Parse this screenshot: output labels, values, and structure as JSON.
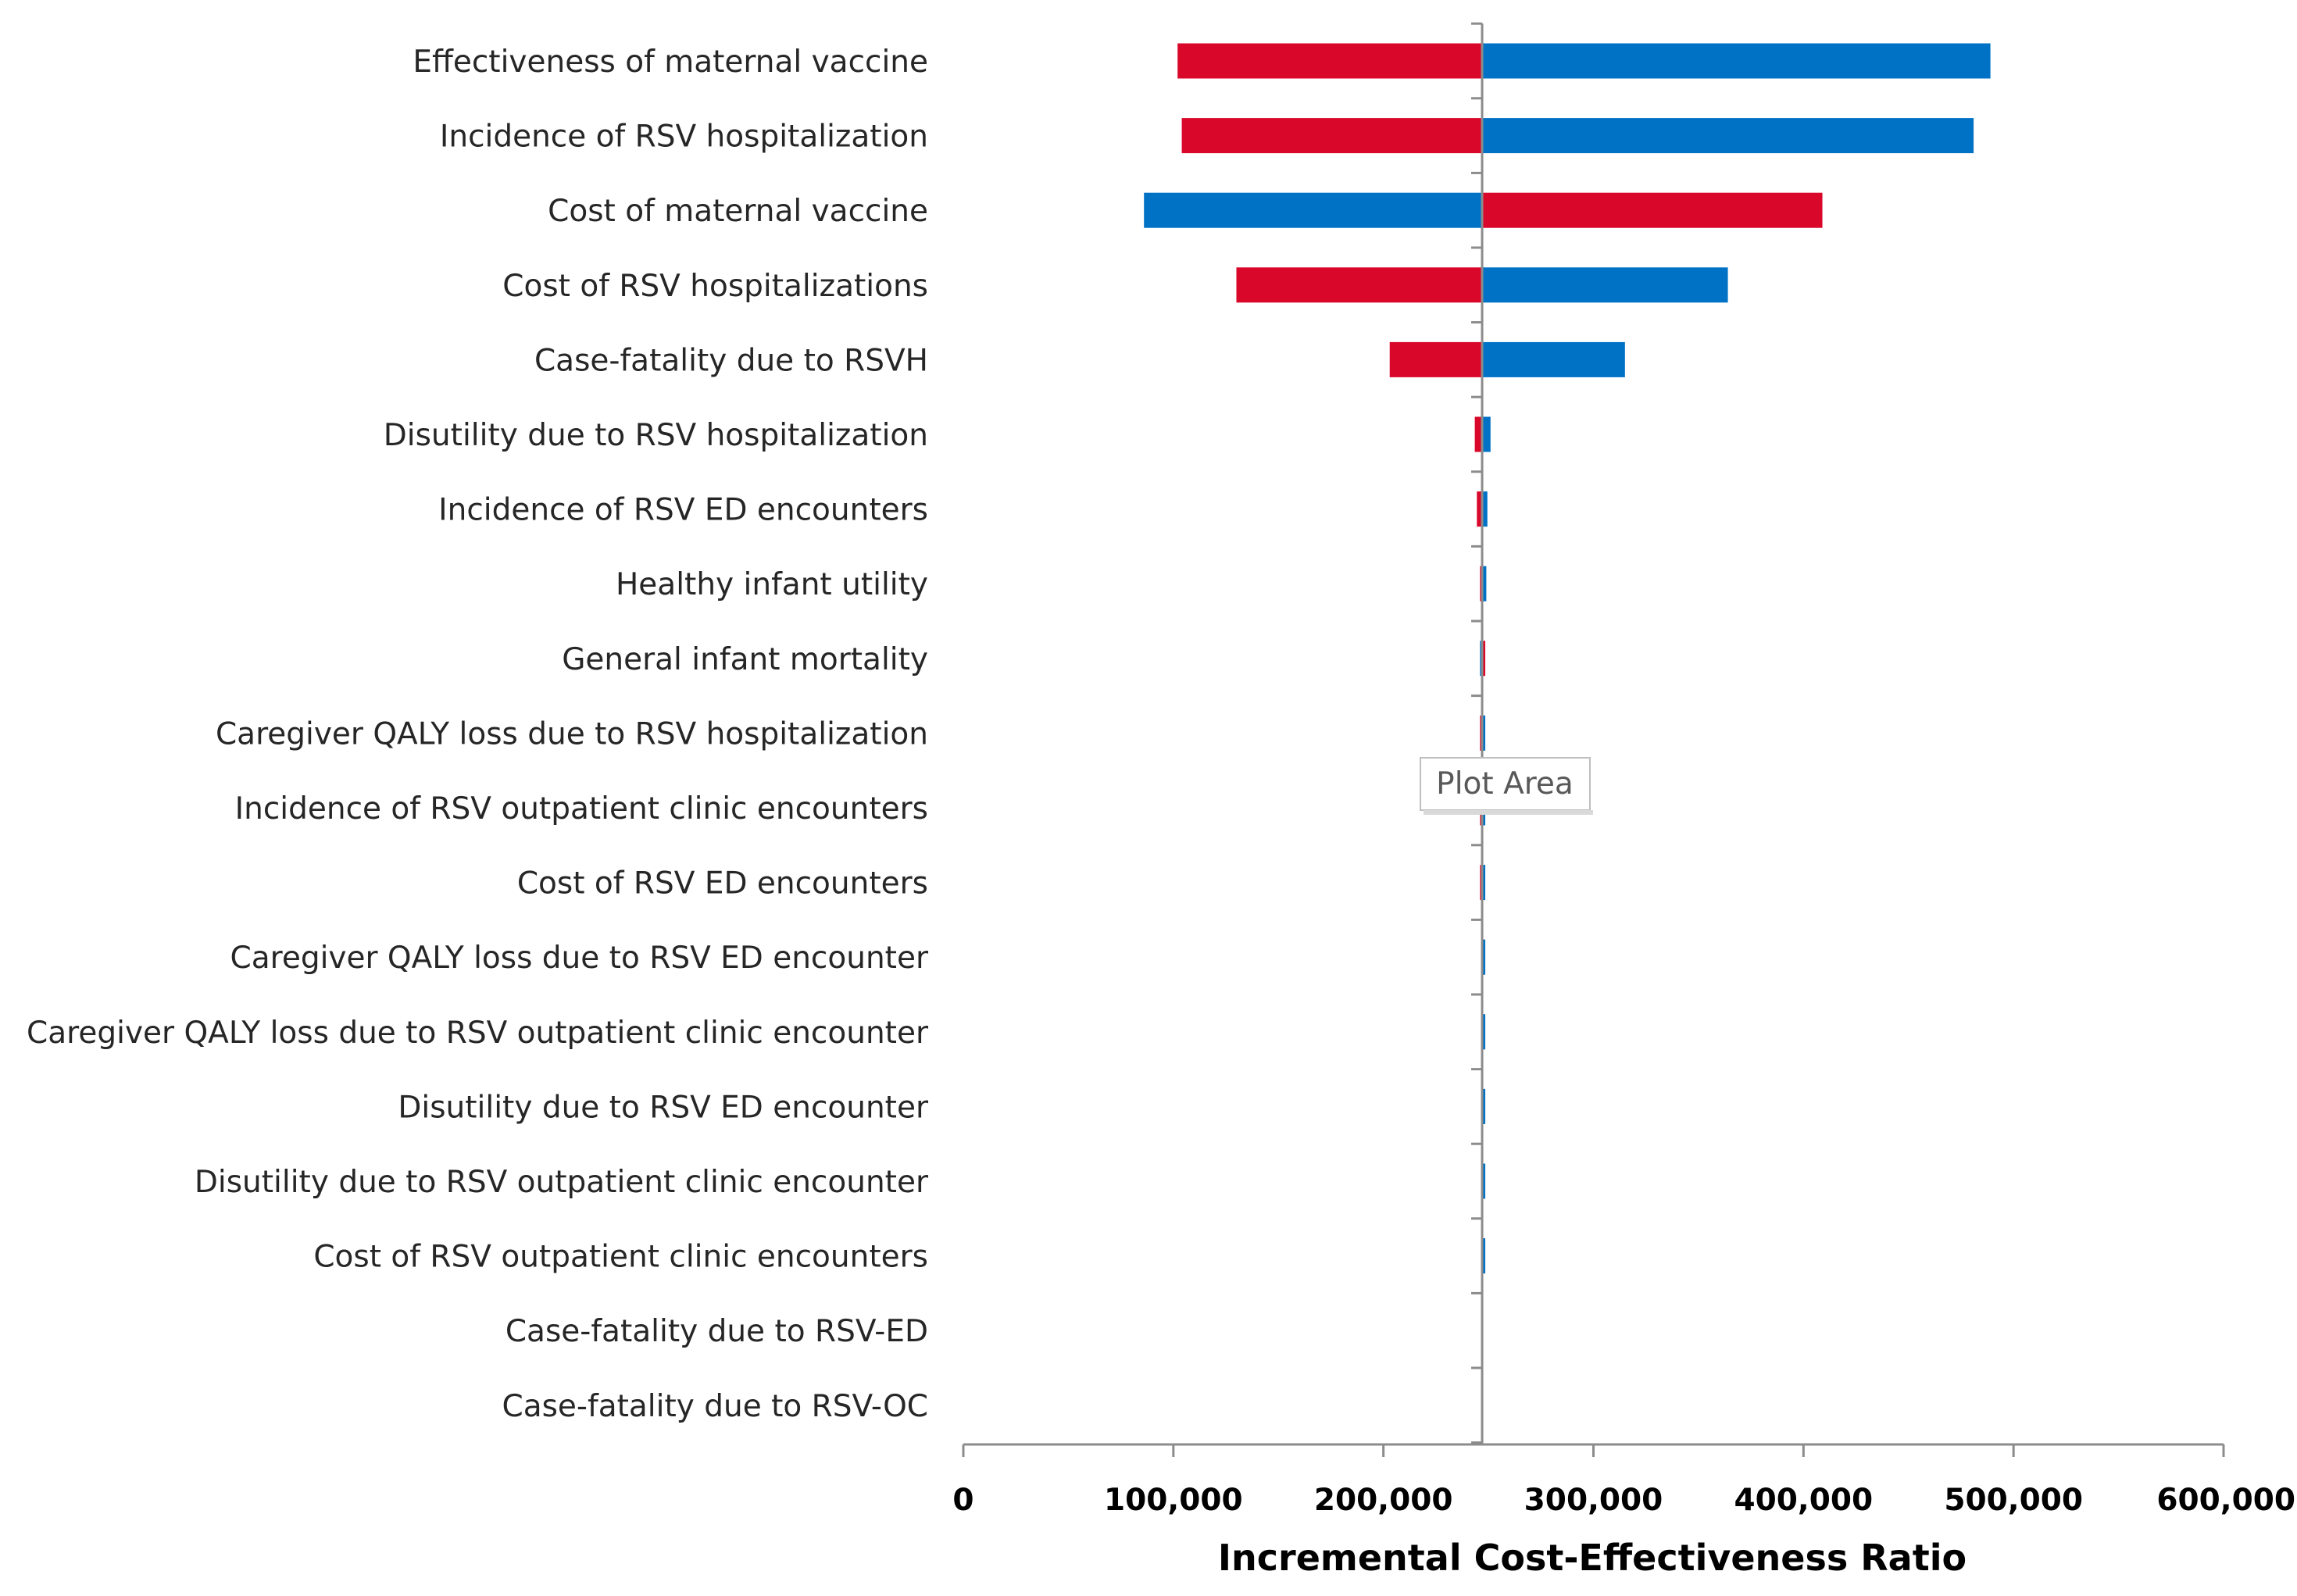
{
  "chart_data": {
    "type": "tornado",
    "xlabel": "Incremental Cost-Effectiveness Ratio",
    "xlim": [
      0,
      600000
    ],
    "xticks": [
      0,
      100000,
      200000,
      300000,
      400000,
      500000,
      600000
    ],
    "xtick_labels": [
      "0",
      "100,000",
      "200,000",
      "300,000",
      "400,000",
      "500,000",
      "600,000"
    ],
    "base_value": 247000,
    "colors": {
      "red": "#d9082a",
      "blue": "#0072c6",
      "axis": "#8c8c8c"
    },
    "categories": [
      "Effectiveness of maternal vaccine",
      "Incidence of RSV hospitalization",
      "Cost of maternal vaccine",
      "Cost of RSV hospitalizations",
      "Case-fatality due to RSVH",
      "Disutility due to RSV hospitalization",
      "Incidence of RSV ED encounters",
      "Healthy infant utility",
      "General infant mortality",
      "Caregiver QALY loss due to RSV hospitalization",
      "Incidence of RSV outpatient clinic encounters",
      "Cost of RSV ED encounters",
      "Caregiver QALY loss due to RSV ED encounter",
      "Caregiver QALY loss due to RSV outpatient clinic encounter",
      "Disutility due to RSV ED encounter",
      "Disutility due to RSV outpatient clinic encounter",
      "Cost of RSV outpatient clinic encounters",
      "Case-fatality due to RSV-ED",
      "Case-fatality due to RSV-OC"
    ],
    "series": [
      {
        "name": "red",
        "values": [
          102000,
          104000,
          409000,
          130000,
          203000,
          243500,
          244500,
          246000,
          248500,
          246000,
          246000,
          246000,
          247500,
          247500,
          247500,
          247500,
          247500,
          247000,
          247000
        ]
      },
      {
        "name": "blue",
        "values": [
          489000,
          481000,
          86000,
          364000,
          315000,
          251000,
          249500,
          249000,
          246000,
          248500,
          248500,
          248500,
          248500,
          248500,
          248500,
          248500,
          248500,
          247000,
          247000
        ]
      }
    ],
    "annotations": [
      {
        "text": "Plot Area"
      }
    ]
  }
}
